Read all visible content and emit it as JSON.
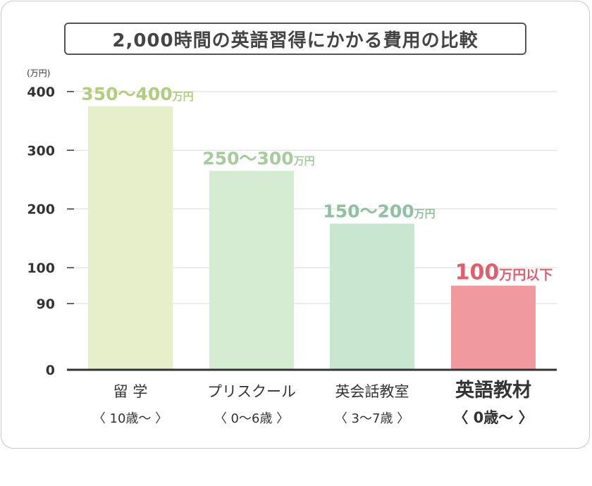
{
  "chart_data": {
    "type": "bar",
    "title": "2,000時間の英語習得にかかる費用の比較",
    "ylabel": "(万円)",
    "yticks": [
      0,
      90,
      100,
      200,
      300,
      400
    ],
    "ylim": [
      0,
      400
    ],
    "grid": true,
    "categories": [
      "留 学",
      "プリスクール",
      "英会話教室",
      "英語教材"
    ],
    "sublabels": [
      "〈 10歳〜 〉",
      "〈 0〜6歳 〉",
      "〈 3〜7歳 〉",
      "〈 0歳〜 〉"
    ],
    "values": [
      375,
      265,
      175,
      95
    ],
    "value_labels": [
      {
        "main": "350〜400",
        "unit": "万円"
      },
      {
        "main": "250〜300",
        "unit": "万円"
      },
      {
        "main": "150〜200",
        "unit": "万円"
      },
      {
        "main": "100",
        "unit": "万円以下"
      }
    ],
    "colors": {
      "bars": [
        "#e6efc9",
        "#d6ecd2",
        "#c8e6d0",
        "#f09aa0"
      ],
      "value_text": [
        "#b2cd7e",
        "#a4cc9c",
        "#8fc0a2",
        "#e25d6e"
      ],
      "category_text": [
        "#333333",
        "#333333",
        "#333333",
        "#e25d6e"
      ],
      "grid": "#d9d9d9",
      "axis": "#333333"
    },
    "highlight_index": 3
  }
}
